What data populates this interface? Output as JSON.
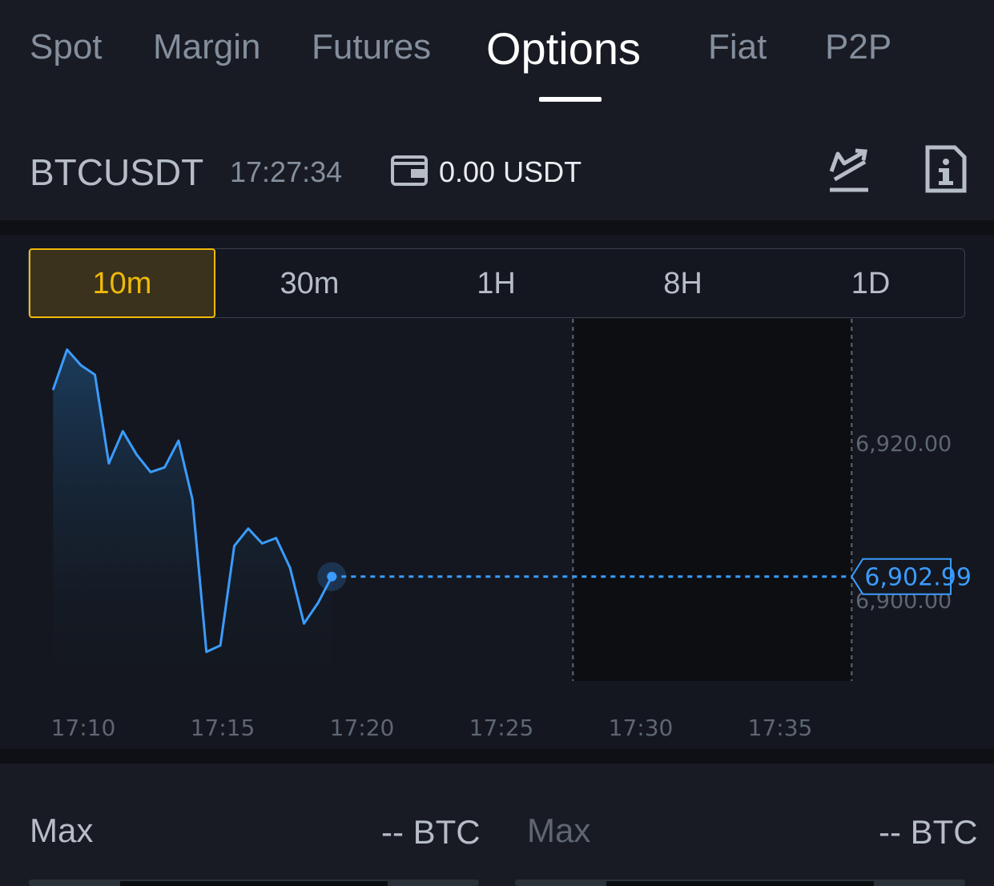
{
  "nav": {
    "tabs": [
      "Spot",
      "Margin",
      "Futures",
      "Options",
      "Fiat",
      "P2P"
    ],
    "active": "Options"
  },
  "header": {
    "symbol": "BTCUSDT",
    "time": "17:27:34",
    "balance": "0.00 USDT"
  },
  "timeframes": {
    "options": [
      "10m",
      "30m",
      "1H",
      "8H",
      "1D"
    ],
    "selected": "10m"
  },
  "colors": {
    "accent": "#f0b90b",
    "line": "#3b9cff",
    "background": "#14171f"
  },
  "chart_data": {
    "type": "area",
    "x_ticks": [
      "17:10",
      "17:15",
      "17:20",
      "17:25",
      "17:30",
      "17:35"
    ],
    "y_ticks": [
      "6,920.00",
      "6,900.00"
    ],
    "current_price_label": "6,902.99",
    "current_price": 6902.99,
    "x_minutes": [
      0,
      1,
      2,
      3,
      4,
      5,
      6,
      7,
      8,
      9,
      10,
      11,
      12,
      13,
      14,
      15,
      16,
      17,
      18,
      19,
      20
    ],
    "values": [
      6926.8,
      6931.9,
      6929.9,
      6928.7,
      6917.4,
      6921.5,
      6918.5,
      6916.3,
      6916.9,
      6920.3,
      6912.8,
      6893.4,
      6894.2,
      6906.9,
      6909.1,
      6907.2,
      6907.9,
      6904.1,
      6897.0,
      6899.6,
      6902.99
    ],
    "start_time": "17:08:55",
    "x_step_seconds": 30,
    "forecast_window": [
      "17:27:34",
      "17:37:34"
    ]
  },
  "form": {
    "left": {
      "label": "Max",
      "value": "-- BTC"
    },
    "right": {
      "label": "Max",
      "value": "-- BTC"
    }
  }
}
